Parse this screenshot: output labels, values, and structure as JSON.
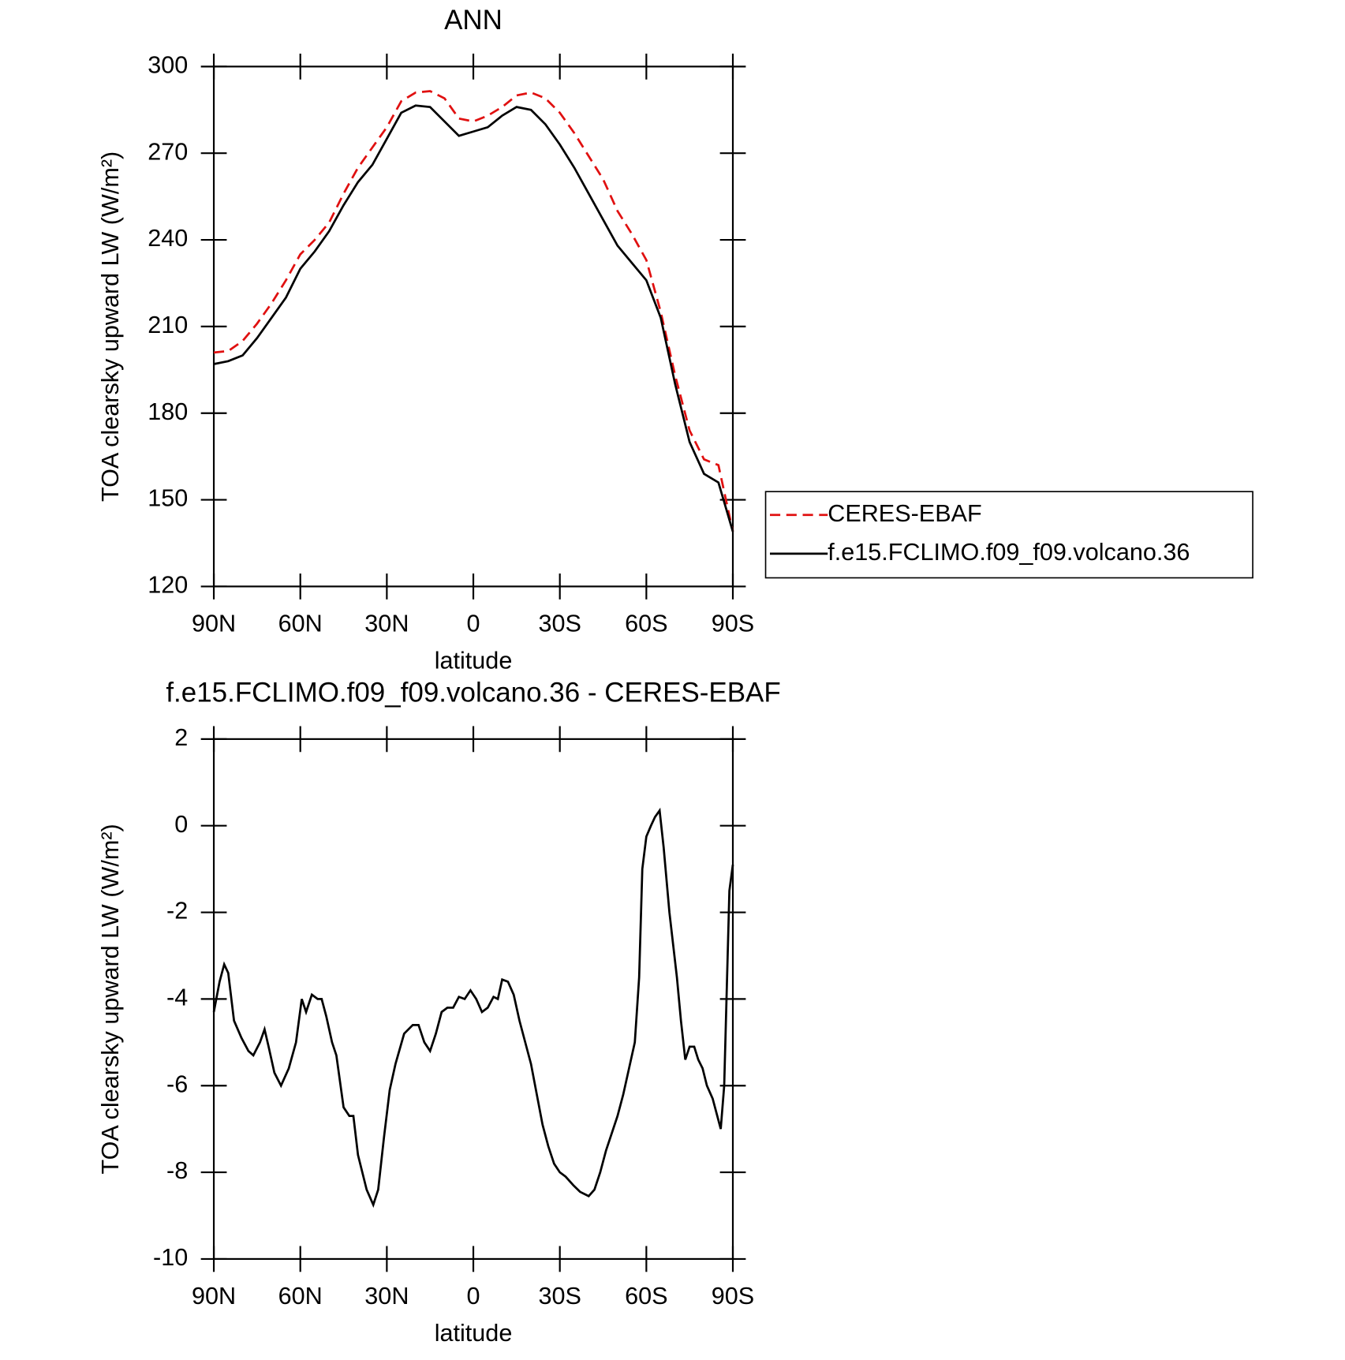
{
  "chart_data": [
    {
      "type": "line",
      "title": "ANN",
      "xlabel": "latitude",
      "ylabel": "TOA clearsky upward LW (W/m²)",
      "x": [
        90,
        85,
        80,
        75,
        70,
        65,
        60,
        55,
        50,
        45,
        40,
        35,
        30,
        25,
        20,
        15,
        10,
        5,
        0,
        -5,
        -10,
        -15,
        -20,
        -25,
        -30,
        -35,
        -40,
        -45,
        -50,
        -55,
        -60,
        -65,
        -70,
        -75,
        -80,
        -85,
        -90
      ],
      "series": [
        {
          "name": "CERES-EBAF",
          "color": "#e01010",
          "dash": true,
          "values": [
            201,
            201.5,
            205,
            211,
            218,
            226,
            235,
            240,
            246,
            256,
            265,
            272,
            279,
            288,
            291,
            291.5,
            289,
            282,
            281,
            283,
            286,
            290,
            291,
            289,
            284,
            277,
            269,
            261,
            250,
            242,
            233,
            215,
            193,
            174,
            164,
            162,
            139
          ]
        },
        {
          "name": "f.e15.FCLIMO.f09_f09.volcano.36",
          "color": "#000000",
          "dash": false,
          "values": [
            197,
            198,
            200,
            206,
            213,
            220,
            230,
            236,
            243,
            252,
            260,
            266,
            275,
            284,
            286.5,
            286,
            281,
            276,
            277.5,
            279,
            283,
            286,
            285,
            280,
            273,
            265,
            256,
            247,
            238,
            232,
            226,
            213,
            190,
            170,
            159,
            156,
            139
          ]
        }
      ],
      "xlim": [
        90,
        -90
      ],
      "xticks": [
        {
          "value": 90,
          "label": "90N"
        },
        {
          "value": 60,
          "label": "60N"
        },
        {
          "value": 30,
          "label": "30N"
        },
        0,
        {
          "value": -30,
          "label": "30S"
        },
        {
          "value": -60,
          "label": "60S"
        },
        {
          "value": -90,
          "label": "90S"
        }
      ],
      "ylim": [
        120,
        300
      ],
      "yticks": [
        120,
        150,
        180,
        210,
        240,
        270,
        300
      ],
      "legend": "right"
    },
    {
      "type": "line",
      "title": "f.e15.FCLIMO.f09_f09.volcano.36 - CERES-EBAF",
      "xlabel": "latitude",
      "ylabel": "TOA clearsky upward LW (W/m²)",
      "x": [
        90,
        88,
        86.4,
        85,
        83,
        80.4,
        78,
        76.3,
        74,
        72.4,
        71,
        69,
        66.7,
        64,
        61.5,
        59.5,
        58,
        56,
        54,
        52.6,
        51,
        49,
        47.5,
        45,
        43,
        41.6,
        40,
        37,
        34.7,
        33,
        31,
        29,
        27,
        24,
        21,
        19,
        17,
        15,
        13,
        11,
        9,
        7,
        5,
        3,
        1,
        -1,
        -3,
        -5,
        -7,
        -8.5,
        -10,
        -12,
        -14,
        -16,
        -18,
        -20,
        -22,
        -24,
        -26,
        -28,
        -30,
        -32,
        -34.7,
        -37,
        -40,
        -42,
        -44,
        -46,
        -48,
        -50,
        -52,
        -54,
        -56,
        -57.5,
        -58.6,
        -60,
        -61.6,
        -63,
        -64.6,
        -66,
        -68,
        -70.6,
        -72,
        -73.5,
        -75,
        -76.6,
        -78,
        -79.5,
        -81,
        -83,
        -85.8,
        -87,
        -88.8,
        -90
      ],
      "series": [
        {
          "color": "#000000",
          "dash": false,
          "values": [
            -4.3,
            -3.6,
            -3.2,
            -3.4,
            -4.5,
            -4.9,
            -5.2,
            -5.3,
            -5.0,
            -4.7,
            -5.1,
            -5.7,
            -6.0,
            -5.6,
            -5.0,
            -4.0,
            -4.3,
            -3.9,
            -4.0,
            -4.0,
            -4.4,
            -5.0,
            -5.3,
            -6.5,
            -6.7,
            -6.7,
            -7.6,
            -8.4,
            -8.75,
            -8.4,
            -7.2,
            -6.1,
            -5.5,
            -4.8,
            -4.6,
            -4.6,
            -5.0,
            -5.2,
            -4.8,
            -4.3,
            -4.2,
            -4.2,
            -3.95,
            -4.0,
            -3.8,
            -4.0,
            -4.3,
            -4.2,
            -3.95,
            -4.0,
            -3.55,
            -3.6,
            -3.9,
            -4.5,
            -5.0,
            -5.5,
            -6.2,
            -6.9,
            -7.4,
            -7.8,
            -8.0,
            -8.1,
            -8.3,
            -8.45,
            -8.55,
            -8.4,
            -8.0,
            -7.5,
            -7.1,
            -6.7,
            -6.2,
            -5.6,
            -5.0,
            -3.5,
            -1.0,
            -0.25,
            0.0,
            0.2,
            0.35,
            -0.5,
            -2.0,
            -3.5,
            -4.5,
            -5.4,
            -5.1,
            -5.1,
            -5.4,
            -5.6,
            -6.0,
            -6.3,
            -7.0,
            -6.0,
            -1.5,
            -0.9
          ]
        }
      ],
      "xlim": [
        90,
        -90
      ],
      "xticks": [
        {
          "value": 90,
          "label": "90N"
        },
        {
          "value": 60,
          "label": "60N"
        },
        {
          "value": 30,
          "label": "30N"
        },
        0,
        {
          "value": -30,
          "label": "30S"
        },
        {
          "value": -60,
          "label": "60S"
        },
        {
          "value": -90,
          "label": "90S"
        }
      ],
      "ylim": [
        -10,
        2
      ],
      "yticks": [
        -10,
        -8,
        -6,
        -4,
        -2,
        0,
        2
      ]
    }
  ]
}
